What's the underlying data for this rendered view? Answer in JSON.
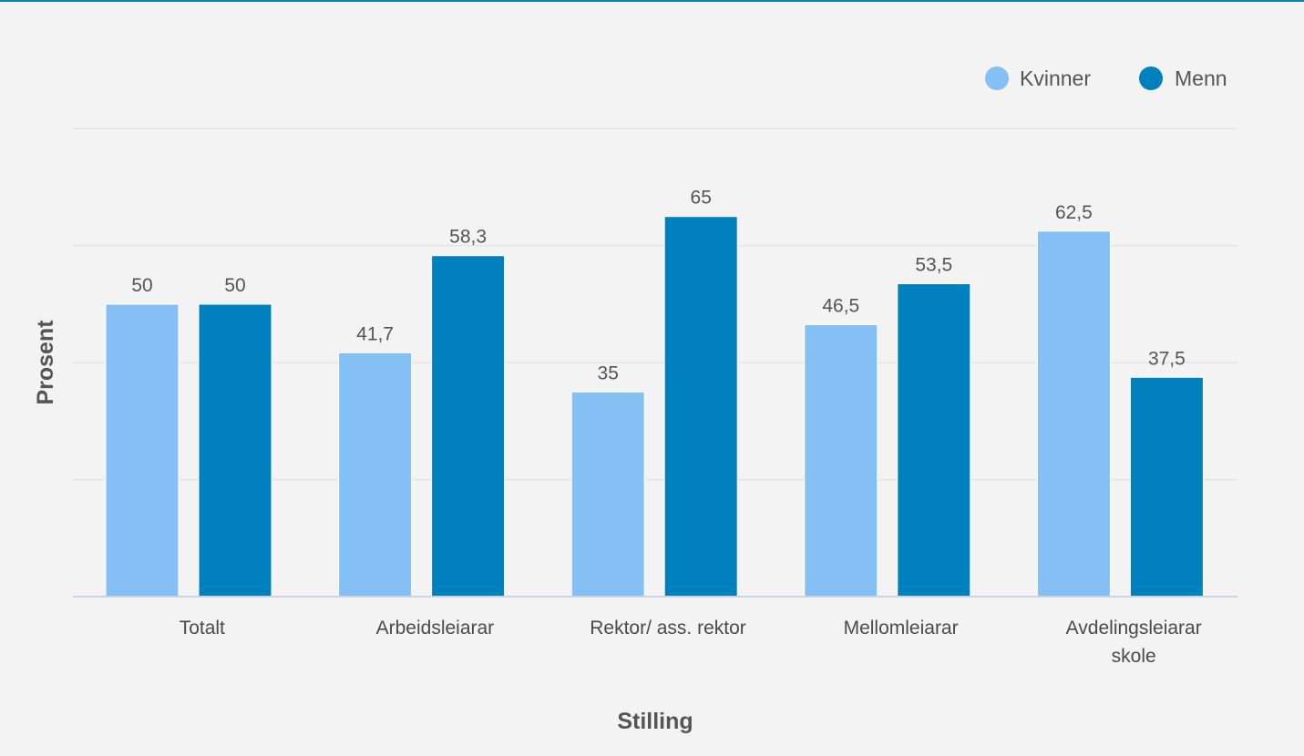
{
  "chart_data": {
    "type": "bar",
    "categories": [
      "Totalt",
      "Arbeidsleiarar",
      "Rektor/ ass. rektor",
      "Mellomleiarar",
      "Avdelingsleiarar skole"
    ],
    "series": [
      {
        "name": "Kvinner",
        "values": [
          50,
          41.7,
          35,
          46.5,
          62.5
        ],
        "color": "#84c0f3"
      },
      {
        "name": "Menn",
        "values": [
          50,
          58.3,
          65,
          53.5,
          37.5
        ],
        "color": "#0080bd"
      }
    ],
    "data_labels": [
      [
        "50",
        "41,7",
        "35",
        "46,5",
        "62,5"
      ],
      [
        "50",
        "58,3",
        "65",
        "53,5",
        "37,5"
      ]
    ],
    "xlabel": "Stilling",
    "ylabel": "Prosent",
    "ylim": [
      0,
      80
    ],
    "grid": true,
    "legend_position": "top-right",
    "colors": {
      "background": "#f3f3f3",
      "gridline": "#e1e1e1",
      "axis_line": "#c8d3e6",
      "accent_border": "#0a7ec2"
    }
  }
}
